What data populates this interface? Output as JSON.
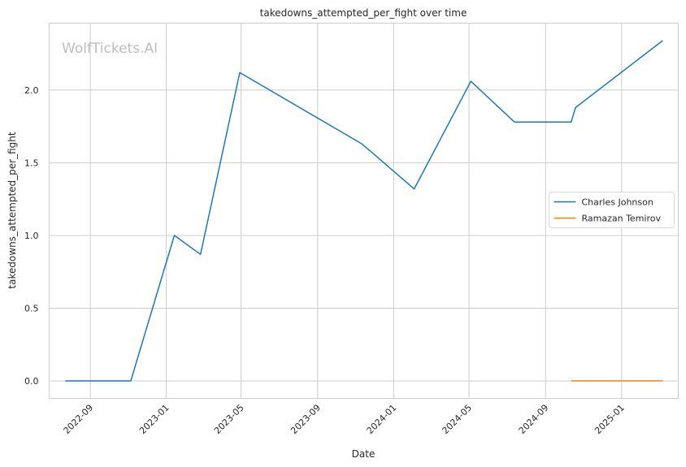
{
  "chart_data": {
    "type": "line",
    "title": "takedowns_attempted_per_fight over time",
    "xlabel": "Date",
    "ylabel": "takedowns_attempted_per_fight",
    "watermark": "WolfTickets.AI",
    "x_ticks": [
      "2022-09",
      "2023-01",
      "2023-05",
      "2023-09",
      "2024-01",
      "2024-05",
      "2024-09",
      "2025-01"
    ],
    "y_ticks": [
      "0.0",
      "0.5",
      "1.0",
      "1.5",
      "2.0"
    ],
    "xlim": [
      "2022-06-27",
      "2025-04-02"
    ],
    "ylim": [
      -0.12,
      2.46
    ],
    "grid": true,
    "legend_position": "center-right",
    "series": [
      {
        "name": "Charles Johnson",
        "color": "#1f77b4",
        "x": [
          "2022-07-23",
          "2022-11-05",
          "2023-01-14",
          "2023-02-25",
          "2023-04-29",
          "2023-11-11",
          "2024-02-03",
          "2024-05-04",
          "2024-07-13",
          "2024-10-12",
          "2024-10-19",
          "2025-03-08"
        ],
        "y": [
          0.0,
          0.0,
          1.0,
          0.87,
          2.12,
          1.63,
          1.32,
          2.06,
          1.78,
          1.78,
          1.88,
          2.34
        ]
      },
      {
        "name": "Ramazan Temirov",
        "color": "#ff7f0e",
        "x": [
          "2024-10-12",
          "2025-03-08"
        ],
        "y": [
          0.0,
          0.0
        ]
      }
    ]
  }
}
